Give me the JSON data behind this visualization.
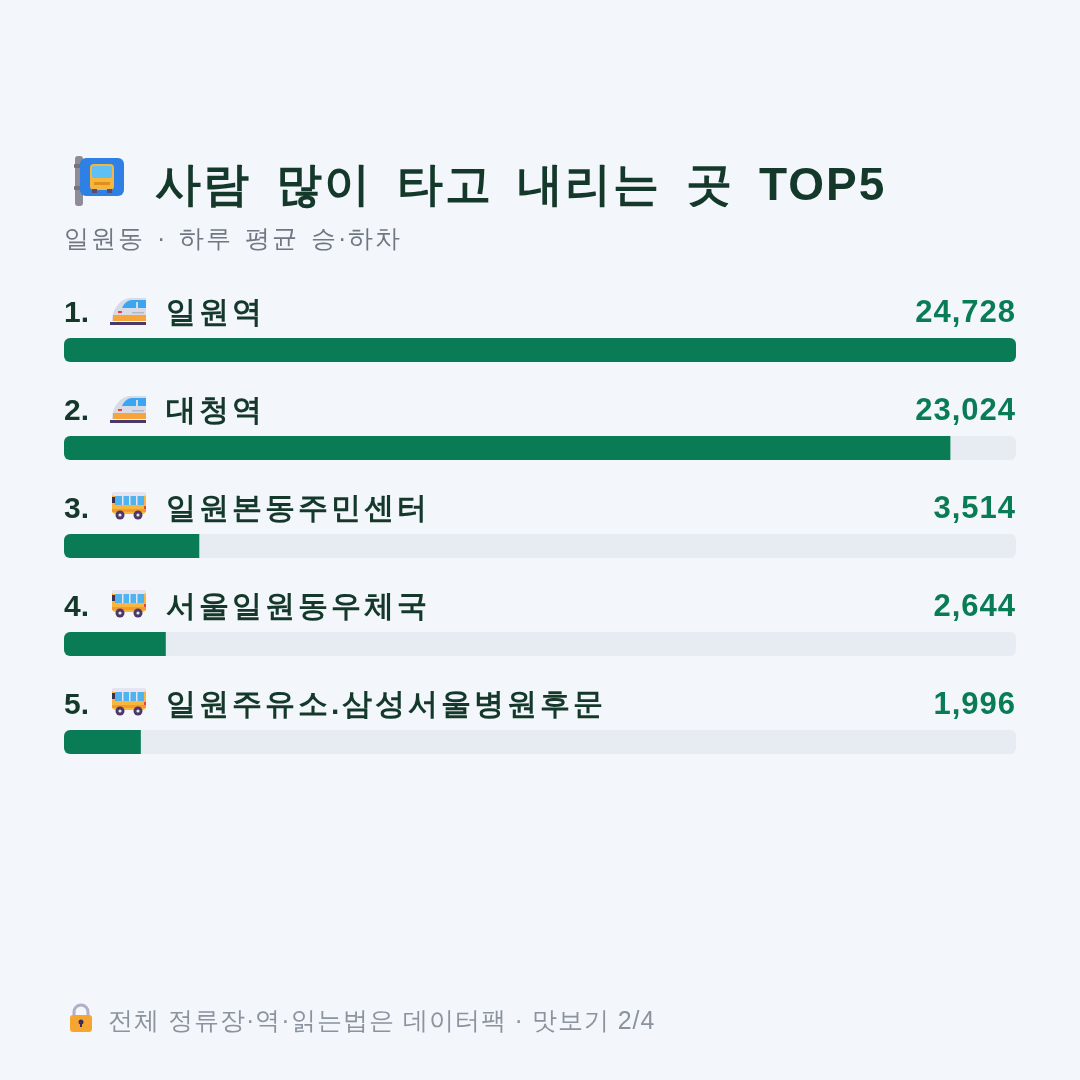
{
  "chart_data": {
    "type": "bar",
    "orientation": "horizontal",
    "title": "사람 많이 타고 내리는 곳 TOP5",
    "subtitle": "일원동 · 하루 평균 승·하차",
    "categories": [
      "일원역",
      "대청역",
      "일원본동주민센터",
      "서울일원동우체국",
      "일원주유소.삼성서울병원후문"
    ],
    "values": [
      24728,
      23024,
      3514,
      2644,
      1996
    ],
    "value_labels": [
      "24,728",
      "23,024",
      "3,514",
      "2,644",
      "1,996"
    ],
    "color": "#0a7c55",
    "annotations": [
      "1.",
      "2.",
      "3.",
      "4.",
      "5.",
      "전체 정류장·역·읽는법은 데이터팩 · 맛보기 2/4"
    ]
  }
}
